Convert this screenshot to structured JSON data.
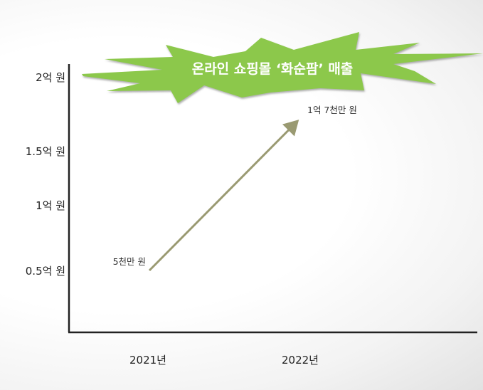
{
  "chart_data": {
    "type": "line",
    "title": "온라인 쇼핑몰 ‘화순팜’ 매출",
    "categories": [
      "2021년",
      "2022년"
    ],
    "y_tick_labels": [
      "0.5억 원",
      "1억 원",
      "1.5억 원",
      "2억 원"
    ],
    "y_ticks": [
      0.5,
      1,
      1.5,
      2
    ],
    "series": [
      {
        "values": [
          0.5,
          1.7
        ],
        "data_labels": [
          "5천만 원",
          "1억 7천만 원"
        ]
      }
    ],
    "grid": false,
    "colors": {
      "line": "#9a9a72",
      "burst": "#8cc84b",
      "axis": "#222222"
    }
  }
}
